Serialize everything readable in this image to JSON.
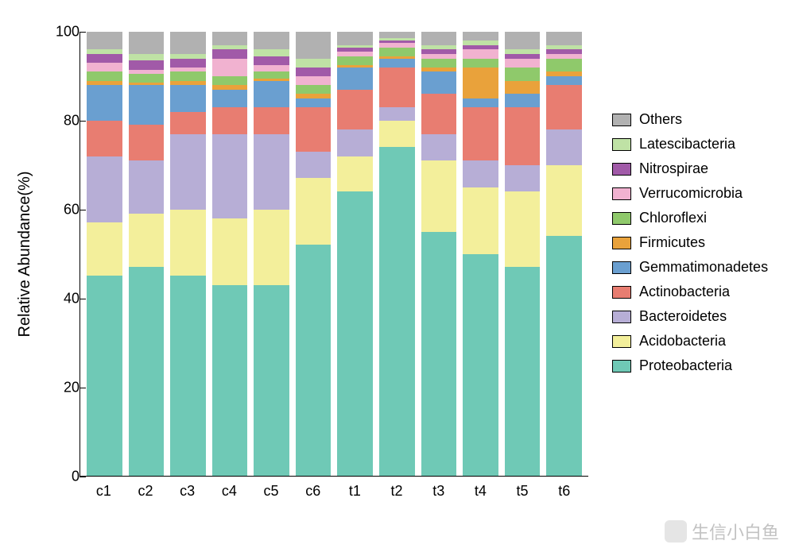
{
  "chart": {
    "type": "stacked-bar",
    "ylabel": "Relative Abundance(%)",
    "label_fontsize": 20,
    "tick_fontsize": 18,
    "legend_fontsize": 18,
    "ylim": [
      0,
      100
    ],
    "ytick_step": 20,
    "yticks": [
      0,
      20,
      40,
      60,
      80,
      100
    ],
    "background_color": "#ffffff",
    "axis_color": "#000000",
    "bar_gap": 8,
    "categories": [
      "c1",
      "c2",
      "c3",
      "c4",
      "c5",
      "c6",
      "t1",
      "t2",
      "t3",
      "t4",
      "t5",
      "t6"
    ],
    "taxa": [
      {
        "name": "Proteobacteria",
        "color": "#6fc9b6"
      },
      {
        "name": "Acidobacteria",
        "color": "#f3ef9b"
      },
      {
        "name": "Bacteroidetes",
        "color": "#b7aed6"
      },
      {
        "name": "Actinobacteria",
        "color": "#e87d71"
      },
      {
        "name": "Gemmatimonadetes",
        "color": "#6a9fd0"
      },
      {
        "name": "Firmicutes",
        "color": "#e9a23b"
      },
      {
        "name": "Chloroflexi",
        "color": "#8fc96b"
      },
      {
        "name": "Verrucomicrobia",
        "color": "#f1b2d0"
      },
      {
        "name": "Nitrospirae",
        "color": "#a15aa8"
      },
      {
        "name": "Latescibacteria",
        "color": "#bfe2a5"
      },
      {
        "name": "Others",
        "color": "#b1b1b1"
      }
    ],
    "values": {
      "c1": [
        45,
        12,
        15,
        8,
        8,
        1,
        2,
        2,
        2,
        1,
        4
      ],
      "c2": [
        47,
        12,
        12,
        8,
        9,
        0.5,
        2,
        1,
        2,
        1.5,
        5
      ],
      "c3": [
        45,
        15,
        17,
        5,
        6,
        1,
        2,
        1,
        2,
        1,
        5
      ],
      "c4": [
        43,
        15,
        19,
        6,
        4,
        1,
        2,
        4,
        2,
        1,
        3
      ],
      "c5": [
        43,
        17,
        17,
        6,
        6,
        0.5,
        1.5,
        1.5,
        2,
        1.5,
        4
      ],
      "c6": [
        52,
        15,
        6,
        10,
        2,
        1,
        2,
        2,
        2,
        2,
        6
      ],
      "t1": [
        64,
        8,
        6,
        9,
        5,
        0.5,
        2,
        1,
        1,
        0.5,
        3
      ],
      "t2": [
        74,
        6,
        3,
        9,
        2,
        0.5,
        2,
        1,
        0.5,
        0.5,
        1.5
      ],
      "t3": [
        55,
        16,
        6,
        9,
        5,
        1,
        2,
        1,
        1,
        1,
        3
      ],
      "t4": [
        50,
        15,
        6,
        12,
        2,
        7,
        2,
        2,
        1,
        1,
        2
      ],
      "t5": [
        47,
        17,
        6,
        13,
        3,
        3,
        3,
        2,
        1,
        1,
        4
      ],
      "t6": [
        54,
        16,
        8,
        10,
        2,
        1,
        3,
        1,
        1,
        1,
        3
      ]
    }
  },
  "legend_order": [
    "Others",
    "Latescibacteria",
    "Nitrospirae",
    "Verrucomicrobia",
    "Chloroflexi",
    "Firmicutes",
    "Gemmatimonadetes",
    "Actinobacteria",
    "Bacteroidetes",
    "Acidobacteria",
    "Proteobacteria"
  ],
  "watermark": {
    "text": "生信小白鱼",
    "color": "rgba(120,120,120,0.45)",
    "fontsize": 22
  }
}
